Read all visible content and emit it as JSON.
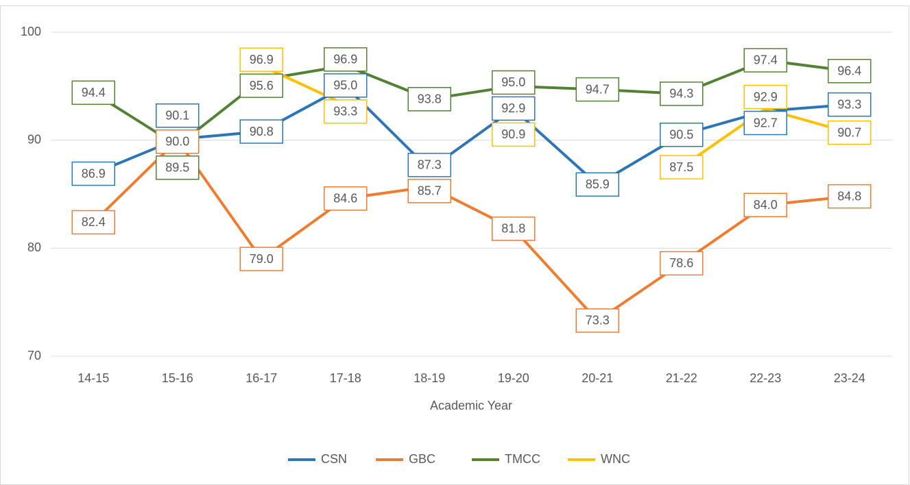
{
  "chart_data": {
    "type": "line",
    "x_label": "Academic Year",
    "categories": [
      "14-15",
      "15-16",
      "16-17",
      "17-18",
      "18-19",
      "19-20",
      "20-21",
      "21-22",
      "22-23",
      "23-24"
    ],
    "series": [
      {
        "name": "CSN",
        "color": "#2e75b6",
        "values": [
          86.9,
          90.1,
          90.8,
          95.0,
          87.3,
          92.9,
          85.9,
          90.5,
          92.7,
          93.3
        ],
        "value_labels": [
          "86.9",
          "90.1",
          "90.8",
          "95.0",
          "87.3",
          "92.9",
          "85.9",
          "90.5",
          "92.7",
          "93.3"
        ]
      },
      {
        "name": "GBC",
        "color": "#ed7d31",
        "values": [
          82.4,
          90.0,
          79.0,
          84.6,
          85.7,
          81.8,
          73.3,
          78.6,
          84.0,
          84.8
        ],
        "value_labels": [
          "82.4",
          "90.0",
          "79.0",
          "84.6",
          "85.7",
          "81.8",
          "73.3",
          "78.6",
          "84.0",
          "84.8"
        ]
      },
      {
        "name": "TMCC",
        "color": "#548235",
        "values": [
          94.4,
          89.5,
          95.6,
          96.9,
          93.8,
          95.0,
          94.7,
          94.3,
          97.4,
          96.4
        ],
        "value_labels": [
          "94.4",
          "89.5",
          "95.6",
          "96.9",
          "93.8",
          "95.0",
          "94.7",
          "94.3",
          "97.4",
          "96.4"
        ]
      },
      {
        "name": "WNC",
        "color": "#ffc000",
        "values": [
          null,
          null,
          96.9,
          93.3,
          null,
          90.9,
          null,
          87.5,
          92.9,
          90.7
        ],
        "value_labels": [
          null,
          null,
          "96.9",
          "93.3",
          null,
          "90.9",
          null,
          "87.5",
          "92.9",
          "90.7"
        ]
      }
    ],
    "ylim": [
      70,
      100
    ],
    "yticks": [
      70,
      80,
      90,
      100
    ],
    "grid": true,
    "legend": "bottom"
  }
}
